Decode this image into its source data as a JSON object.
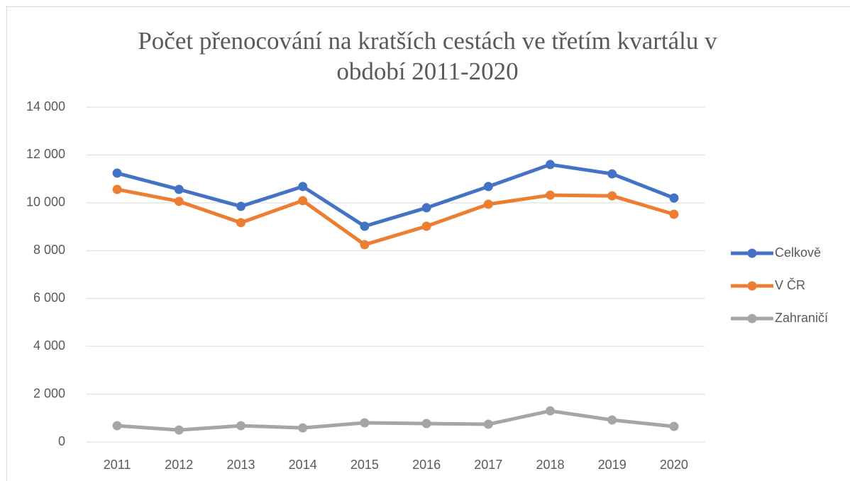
{
  "chart_data": {
    "type": "line",
    "title": "Počet přenocování na kratších cestách ve třetím kvartálu v období 2011-2020",
    "categories": [
      "2011",
      "2012",
      "2013",
      "2014",
      "2015",
      "2016",
      "2017",
      "2018",
      "2019",
      "2020"
    ],
    "series": [
      {
        "name": "Celkově",
        "color": "#4472c4",
        "values": [
          11240,
          10560,
          9850,
          10680,
          9020,
          9790,
          10680,
          11600,
          11210,
          10200
        ]
      },
      {
        "name": "V ČR",
        "color": "#ed7d31",
        "values": [
          10560,
          10060,
          9170,
          10090,
          8250,
          9020,
          9940,
          10320,
          10290,
          9520
        ]
      },
      {
        "name": "Zahraničí",
        "color": "#a5a5a5",
        "values": [
          680,
          500,
          680,
          590,
          800,
          770,
          740,
          1300,
          920,
          650
        ]
      }
    ],
    "ylim": [
      0,
      14000
    ],
    "yticks": [
      0,
      {
        "value": 2000,
        "label": "2 000"
      },
      {
        "value": 4000,
        "label": "4 000"
      },
      {
        "value": 6000,
        "label": "6 000"
      },
      {
        "value": 8000,
        "label": "8 000"
      },
      {
        "value": 10000,
        "label": "10 000"
      },
      {
        "value": 12000,
        "label": "12 000"
      },
      {
        "value": 14000,
        "label": "14 000"
      }
    ],
    "grid": true,
    "legend": "right"
  }
}
